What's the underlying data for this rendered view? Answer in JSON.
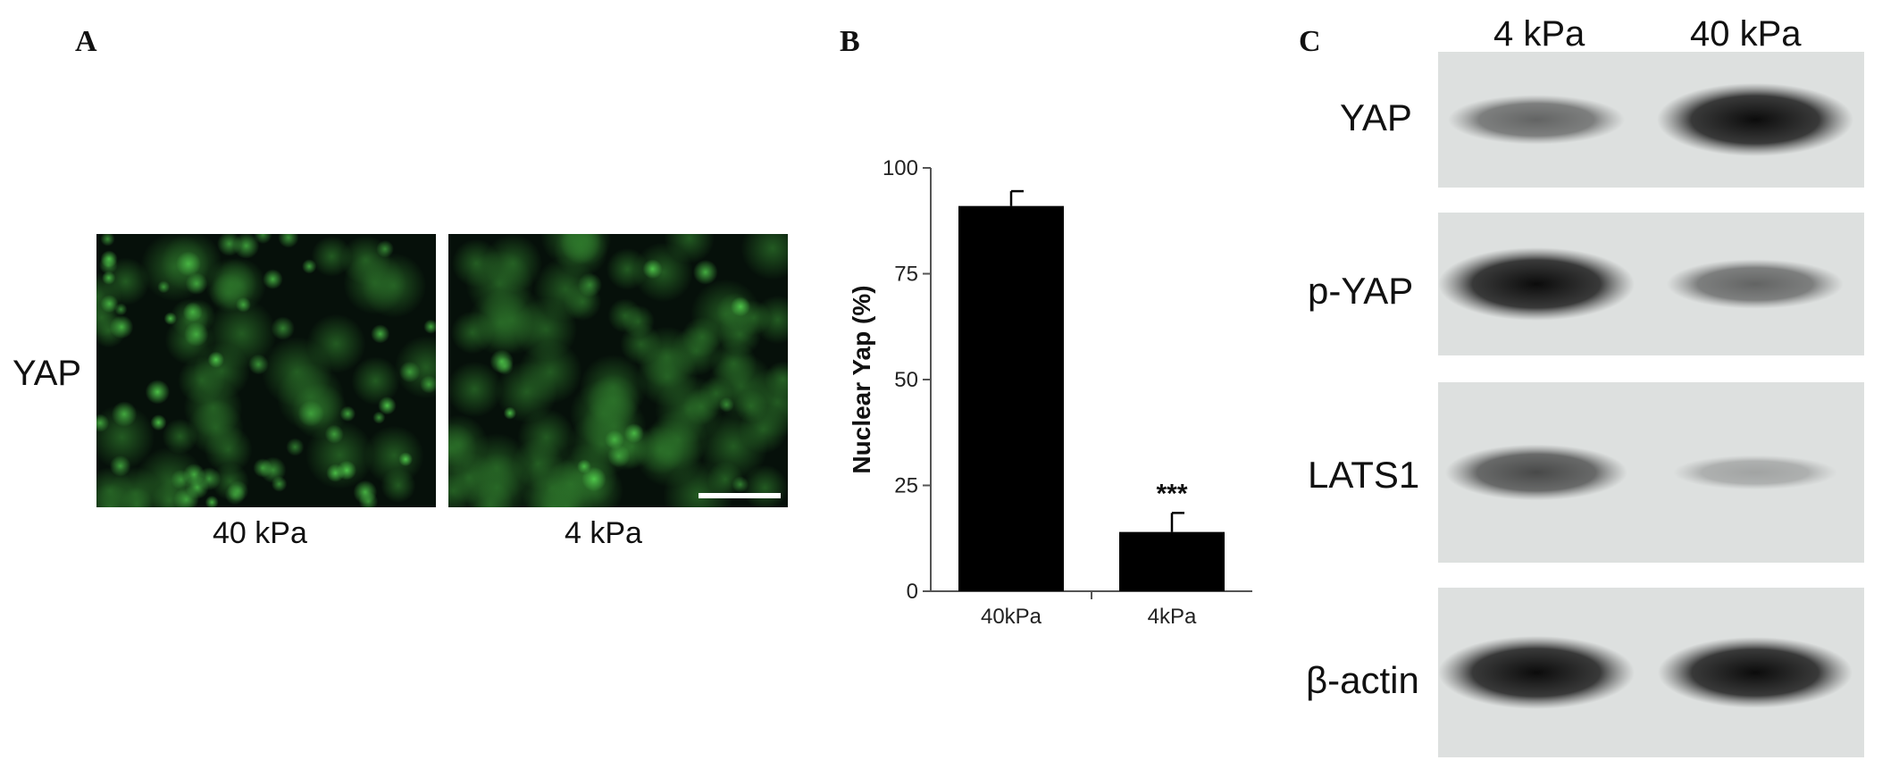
{
  "panels": {
    "a": "A",
    "b": "B",
    "c": "C"
  },
  "panel_a": {
    "row_label": "YAP",
    "images": [
      {
        "label": "40 kPa"
      },
      {
        "label": "4 kPa"
      }
    ],
    "colors": {
      "stain": "#4fc84a",
      "background": "#06100a"
    }
  },
  "chart_data": {
    "type": "bar",
    "categories": [
      "40kPa",
      "4kPa"
    ],
    "values": [
      91,
      14
    ],
    "errors": [
      3.5,
      4.5
    ],
    "annotations": [
      "",
      "***"
    ],
    "ylabel": "Nuclear Yap (%)",
    "ylim": [
      0,
      100
    ],
    "yticks": [
      0,
      25,
      50,
      75,
      100
    ],
    "bar_color": "#000000",
    "grid": false
  },
  "panel_c": {
    "lanes": [
      "4 kPa",
      "40 kPa"
    ],
    "blots": [
      {
        "label": "YAP",
        "band_intensity": [
          0.45,
          1.0
        ]
      },
      {
        "label": "p-YAP",
        "band_intensity": [
          1.0,
          0.45
        ]
      },
      {
        "label": "LATS1",
        "band_intensity": [
          0.6,
          0.1
        ]
      },
      {
        "label": "β-actin",
        "band_intensity": [
          1.0,
          0.95
        ]
      }
    ]
  }
}
